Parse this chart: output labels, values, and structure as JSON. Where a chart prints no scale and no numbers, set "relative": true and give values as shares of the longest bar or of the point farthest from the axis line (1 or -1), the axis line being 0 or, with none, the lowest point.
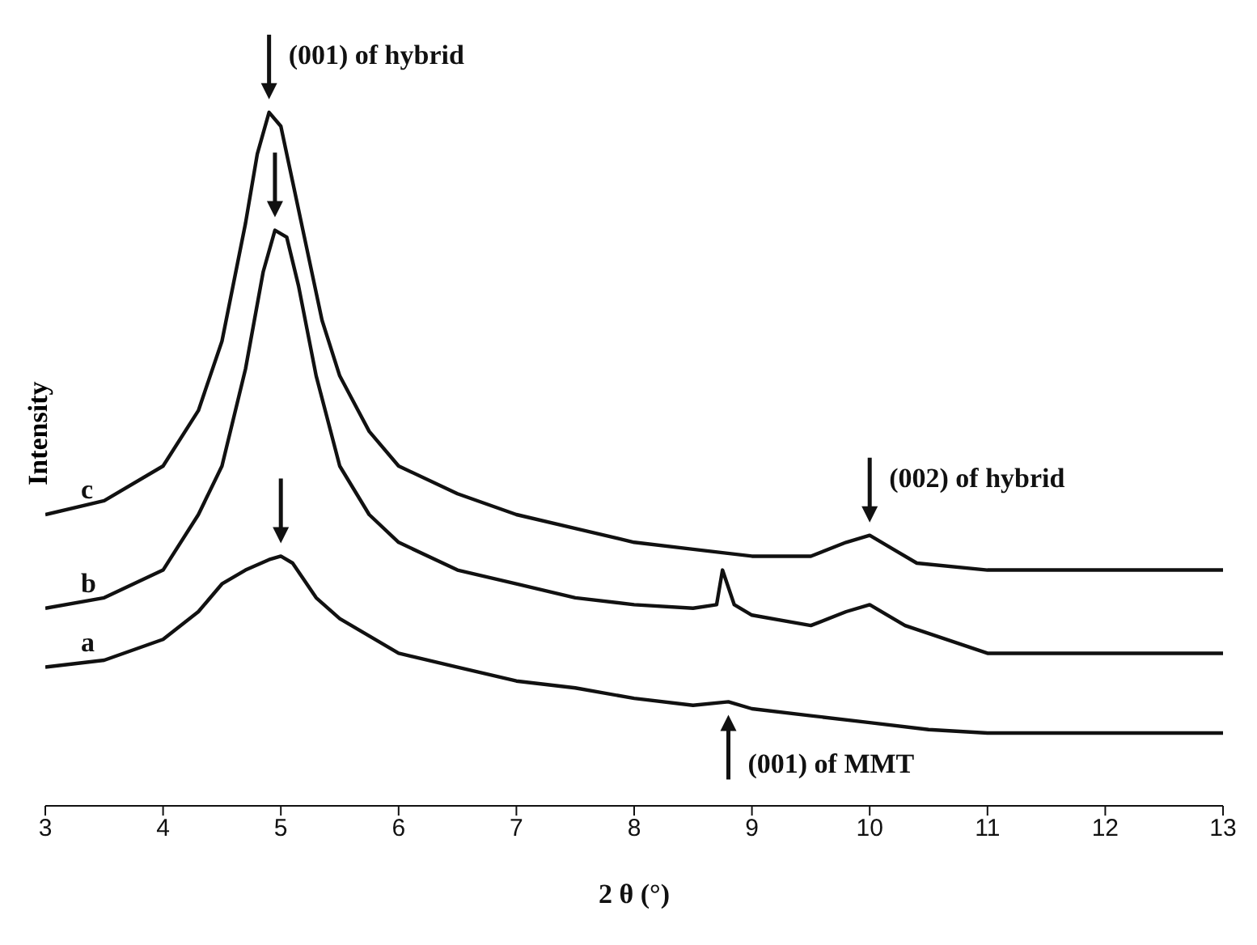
{
  "chart_data": {
    "type": "line",
    "relative": true,
    "xlabel": "2 θ (°)",
    "ylabel": "Intensity",
    "xlim": [
      3,
      13
    ],
    "xticks": [
      3,
      4,
      5,
      6,
      7,
      8,
      9,
      10,
      11,
      12,
      13
    ],
    "series": [
      {
        "name": "c",
        "color": "#111111",
        "x": [
          3,
          3.5,
          4,
          4.3,
          4.5,
          4.7,
          4.8,
          4.9,
          5,
          5.1,
          5.2,
          5.35,
          5.5,
          5.75,
          6,
          6.5,
          7,
          7.5,
          8,
          8.5,
          9,
          9.5,
          9.8,
          10,
          10.2,
          10.4,
          11,
          12,
          13
        ],
        "values": [
          0.42,
          0.44,
          0.49,
          0.57,
          0.67,
          0.84,
          0.94,
          1.0,
          0.98,
          0.9,
          0.82,
          0.7,
          0.62,
          0.54,
          0.49,
          0.45,
          0.42,
          0.4,
          0.38,
          0.37,
          0.36,
          0.36,
          0.38,
          0.39,
          0.37,
          0.35,
          0.34,
          0.34,
          0.34
        ]
      },
      {
        "name": "b",
        "color": "#111111",
        "x": [
          3,
          3.5,
          4,
          4.3,
          4.5,
          4.7,
          4.85,
          4.95,
          5.05,
          5.15,
          5.3,
          5.5,
          5.75,
          6,
          6.5,
          7,
          7.5,
          8,
          8.5,
          8.7,
          8.75,
          8.85,
          9,
          9.5,
          9.8,
          10,
          10.3,
          11,
          12,
          13
        ],
        "values": [
          0.285,
          0.3,
          0.34,
          0.42,
          0.49,
          0.63,
          0.77,
          0.83,
          0.82,
          0.75,
          0.62,
          0.49,
          0.42,
          0.38,
          0.34,
          0.32,
          0.3,
          0.29,
          0.285,
          0.29,
          0.34,
          0.29,
          0.275,
          0.26,
          0.28,
          0.29,
          0.26,
          0.22,
          0.22,
          0.22
        ]
      },
      {
        "name": "a",
        "color": "#111111",
        "x": [
          3,
          3.5,
          4,
          4.3,
          4.5,
          4.7,
          4.9,
          5,
          5.1,
          5.3,
          5.5,
          6,
          6.5,
          7,
          7.5,
          8,
          8.5,
          8.8,
          9,
          9.5,
          10,
          10.5,
          11,
          12,
          13
        ],
        "values": [
          0.2,
          0.21,
          0.24,
          0.28,
          0.32,
          0.34,
          0.355,
          0.36,
          0.35,
          0.3,
          0.27,
          0.22,
          0.2,
          0.18,
          0.17,
          0.155,
          0.145,
          0.15,
          0.14,
          0.13,
          0.12,
          0.11,
          0.105,
          0.105,
          0.105
        ]
      }
    ],
    "annotations": [
      {
        "text": "(001) of hybrid",
        "x": 4.9,
        "y": 1.0
      },
      {
        "text": "(002) of hybrid",
        "x": 10,
        "y": 0.39
      },
      {
        "text": "(001) of MMT",
        "x": 8.8,
        "y": 0.15
      }
    ]
  }
}
